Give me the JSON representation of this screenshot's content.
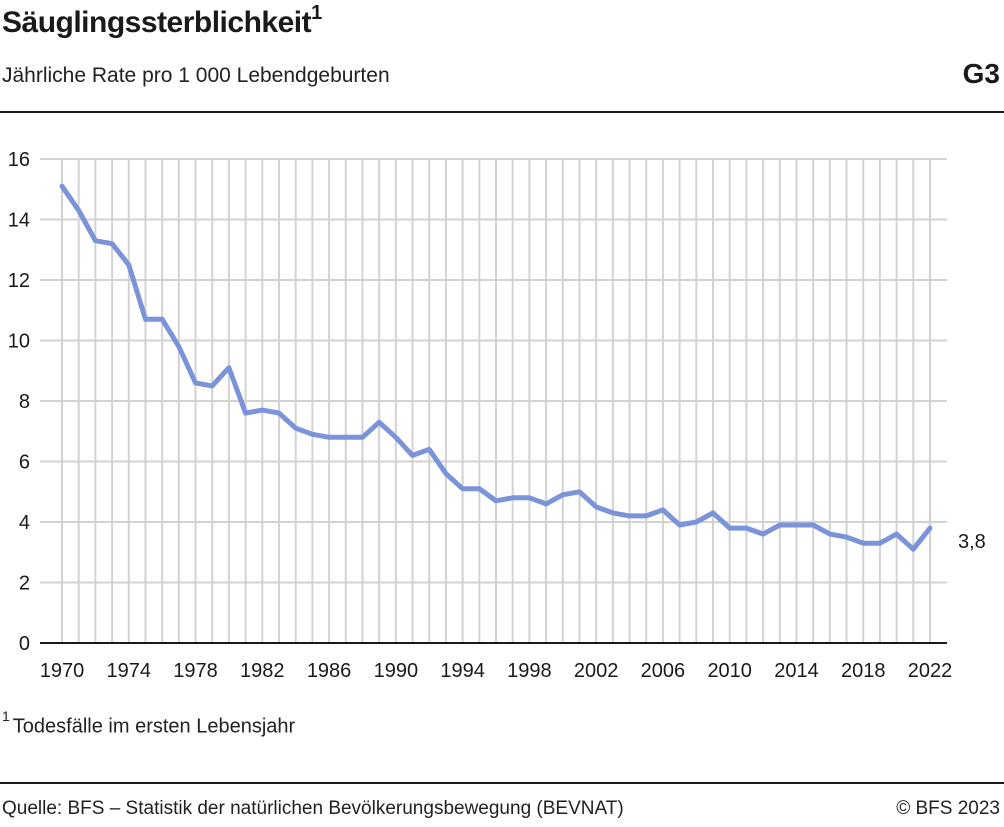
{
  "header": {
    "title": "Säuglingssterblichkeit",
    "title_footnote_mark": "1",
    "subtitle": "Jährliche Rate pro 1 000 Lebendgeburten",
    "graphic_code": "G3"
  },
  "footnote": {
    "mark": "1",
    "text": "Todesfälle im ersten Lebensjahr"
  },
  "footer": {
    "source": "Quelle: BFS – Statistik der natürlichen Bevölkerungsbewegung (BEVNAT)",
    "copyright": "© BFS 2023"
  },
  "colors": {
    "line": "#7b93d9",
    "grid": "#d2d2d2",
    "text": "#1a1a1a"
  },
  "chart_data": {
    "type": "line",
    "title": "Säuglingssterblichkeit",
    "subtitle": "Jährliche Rate pro 1 000 Lebendgeburten",
    "xlabel": "",
    "ylabel": "",
    "xlim": [
      1970,
      2022
    ],
    "ylim": [
      0,
      16
    ],
    "grid": true,
    "x_ticks": [
      1970,
      1974,
      1978,
      1982,
      1986,
      1990,
      1994,
      1998,
      2002,
      2006,
      2010,
      2014,
      2018,
      2022
    ],
    "y_ticks": [
      0,
      2,
      4,
      6,
      8,
      10,
      12,
      14,
      16
    ],
    "end_label": "3,8",
    "series": [
      {
        "x": [
          1970,
          1971,
          1972,
          1973,
          1974,
          1975,
          1976,
          1977,
          1978,
          1979,
          1980,
          1981,
          1982,
          1983,
          1984,
          1985,
          1986,
          1987,
          1988,
          1989,
          1990,
          1991,
          1992,
          1993,
          1994,
          1995,
          1996,
          1997,
          1998,
          1999,
          2000,
          2001,
          2002,
          2003,
          2004,
          2005,
          2006,
          2007,
          2008,
          2009,
          2010,
          2011,
          2012,
          2013,
          2014,
          2015,
          2016,
          2017,
          2018,
          2019,
          2020,
          2021,
          2022
        ],
        "values": [
          15.1,
          14.3,
          13.3,
          13.2,
          12.5,
          10.7,
          10.7,
          9.8,
          8.6,
          8.5,
          9.1,
          7.6,
          7.7,
          7.6,
          7.1,
          6.9,
          6.8,
          6.8,
          6.8,
          7.3,
          6.8,
          6.2,
          6.4,
          5.6,
          5.1,
          5.1,
          4.7,
          4.8,
          4.8,
          4.6,
          4.9,
          5.0,
          4.5,
          4.3,
          4.2,
          4.2,
          4.4,
          3.9,
          4.0,
          4.3,
          3.8,
          3.8,
          3.6,
          3.9,
          3.9,
          3.9,
          3.6,
          3.5,
          3.3,
          3.3,
          3.6,
          3.1,
          3.8
        ]
      }
    ]
  }
}
